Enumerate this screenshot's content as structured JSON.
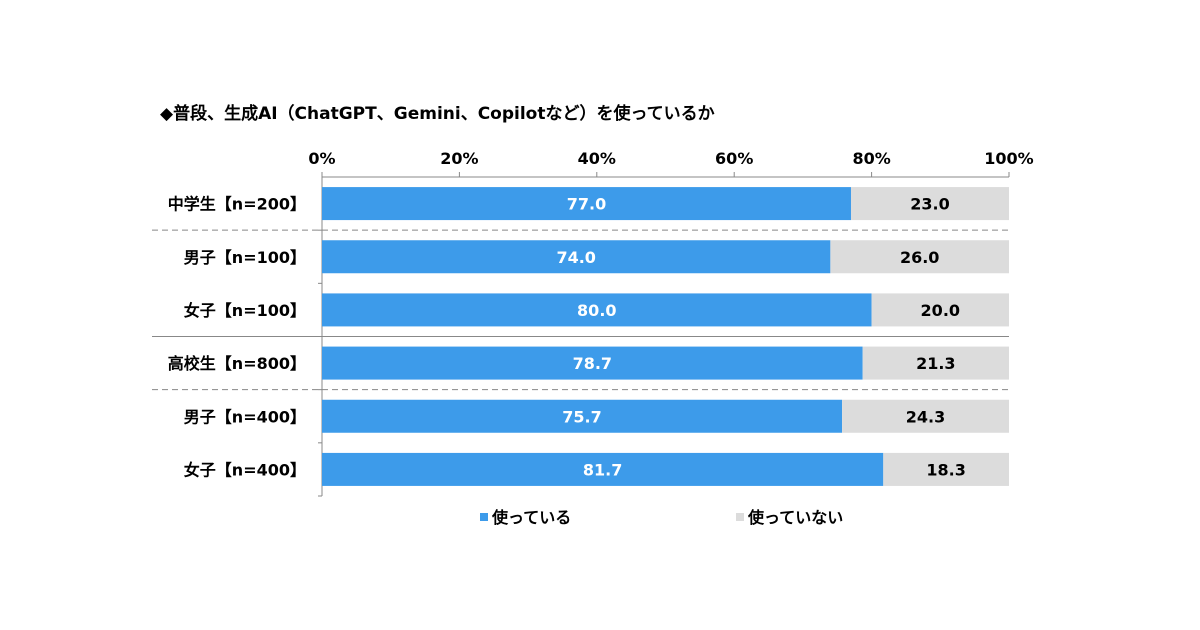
{
  "chart_data": {
    "type": "bar",
    "orientation": "horizontal",
    "stacked": true,
    "title": "◆普段、生成AI（ChatGPT、Gemini、Copilotなど）を使っているか",
    "categories": [
      "中学生【n=200】",
      "男子【n=100】",
      "女子【n=100】",
      "高校生【n=800】",
      "男子【n=400】",
      "女子【n=400】"
    ],
    "series": [
      {
        "name": "使っている",
        "values": [
          77.0,
          74.0,
          80.0,
          78.7,
          75.7,
          81.7
        ],
        "color": "#3D9BEA"
      },
      {
        "name": "使っていない",
        "values": [
          23.0,
          26.0,
          20.0,
          21.3,
          24.3,
          18.3
        ],
        "color": "#DCDCDC"
      }
    ],
    "x_ticks": [
      "0%",
      "20%",
      "40%",
      "60%",
      "80%",
      "100%"
    ],
    "xlim": [
      0,
      100
    ],
    "x_axis_position": "top",
    "legend_position": "bottom",
    "grid": false,
    "data_label_colors": [
      "#ffffff",
      "#000000"
    ]
  }
}
